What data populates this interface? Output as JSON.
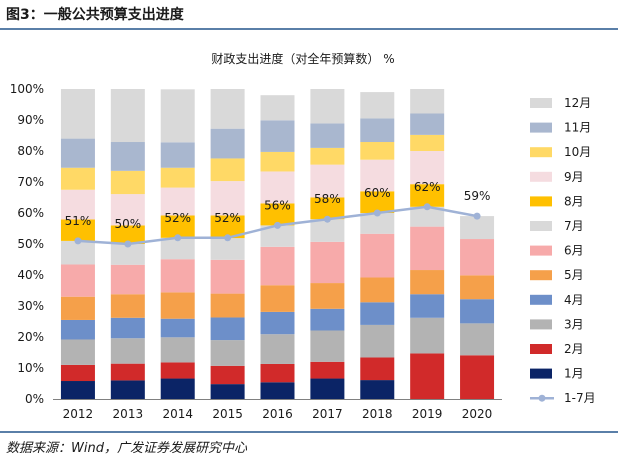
{
  "figure_title": "图3：一般公共预算支出进度",
  "source_text": "数据来源：Wind，广发证券发展研究中心",
  "chart_data": {
    "type": "bar",
    "stacked": true,
    "title": "财政支出进度（对全年预算数） %",
    "categories": [
      "2012",
      "2013",
      "2014",
      "2015",
      "2016",
      "2017",
      "2018",
      "2019",
      "2020"
    ],
    "y_ticks": [
      "0%",
      "10%",
      "20%",
      "30%",
      "40%",
      "50%",
      "60%",
      "70%",
      "80%",
      "90%",
      "100%"
    ],
    "ylim": [
      0,
      100
    ],
    "legend_position": "right",
    "series": [
      {
        "name": "1月",
        "color": "#0b2466",
        "values": [
          5.8,
          6.0,
          6.6,
          4.8,
          5.4,
          6.6,
          6.1,
          0,
          0
        ]
      },
      {
        "name": "2月",
        "color": "#d12a2a",
        "values": [
          5.2,
          5.4,
          5.2,
          5.9,
          5.9,
          5.4,
          7.3,
          14.7,
          14.1
        ]
      },
      {
        "name": "3月",
        "color": "#b3b3b3",
        "values": [
          8.2,
          8.2,
          8.1,
          8.3,
          9.6,
          10.1,
          10.5,
          11.5,
          10.3
        ]
      },
      {
        "name": "4月",
        "color": "#6d8fc9",
        "values": [
          6.3,
          6.6,
          6.0,
          7.3,
          7.2,
          7.0,
          7.3,
          7.6,
          7.8
        ]
      },
      {
        "name": "5月",
        "color": "#f5a04a",
        "values": [
          7.5,
          7.6,
          8.5,
          7.7,
          8.6,
          8.3,
          8.0,
          7.8,
          7.7
        ]
      },
      {
        "name": "6月",
        "color": "#f7aaaa",
        "values": [
          10.4,
          9.5,
          10.7,
          10.9,
          12.4,
          13.3,
          14.1,
          14.0,
          11.7
        ]
      },
      {
        "name": "7月",
        "color": "#d9d9d9",
        "values": [
          7.6,
          6.7,
          6.9,
          7.0,
          6.9,
          7.3,
          6.7,
          6.4,
          7.4
        ]
      },
      {
        "name": "8月",
        "color": "#ffc000",
        "values": [
          6.9,
          6.0,
          7.2,
          7.3,
          7.1,
          7.0,
          7.0,
          7.3,
          0
        ]
      },
      {
        "name": "9月",
        "color": "#f5dce0",
        "values": [
          9.6,
          10.1,
          9.0,
          11.1,
          10.3,
          10.6,
          10.2,
          10.7,
          0
        ]
      },
      {
        "name": "10月",
        "color": "#ffd966",
        "values": [
          7.1,
          7.5,
          6.4,
          7.3,
          6.3,
          5.4,
          5.7,
          5.2,
          0
        ]
      },
      {
        "name": "11月",
        "color": "#a9b7cf",
        "values": [
          9.4,
          9.3,
          8.2,
          9.6,
          10.2,
          7.9,
          7.6,
          6.9,
          0
        ]
      },
      {
        "name": "12月",
        "color": "#d9d9d9",
        "values": [
          16.0,
          17.1,
          17.1,
          12.8,
          8.1,
          11.1,
          8.5,
          7.9,
          0
        ]
      }
    ],
    "line": {
      "name": "1-7月",
      "color": "#9fb2d6",
      "values": [
        51,
        50,
        52,
        52,
        56,
        58,
        60,
        62,
        59
      ],
      "labels": [
        "51%",
        "50%",
        "52%",
        "52%",
        "56%",
        "58%",
        "60%",
        "62%",
        "59%"
      ]
    }
  }
}
